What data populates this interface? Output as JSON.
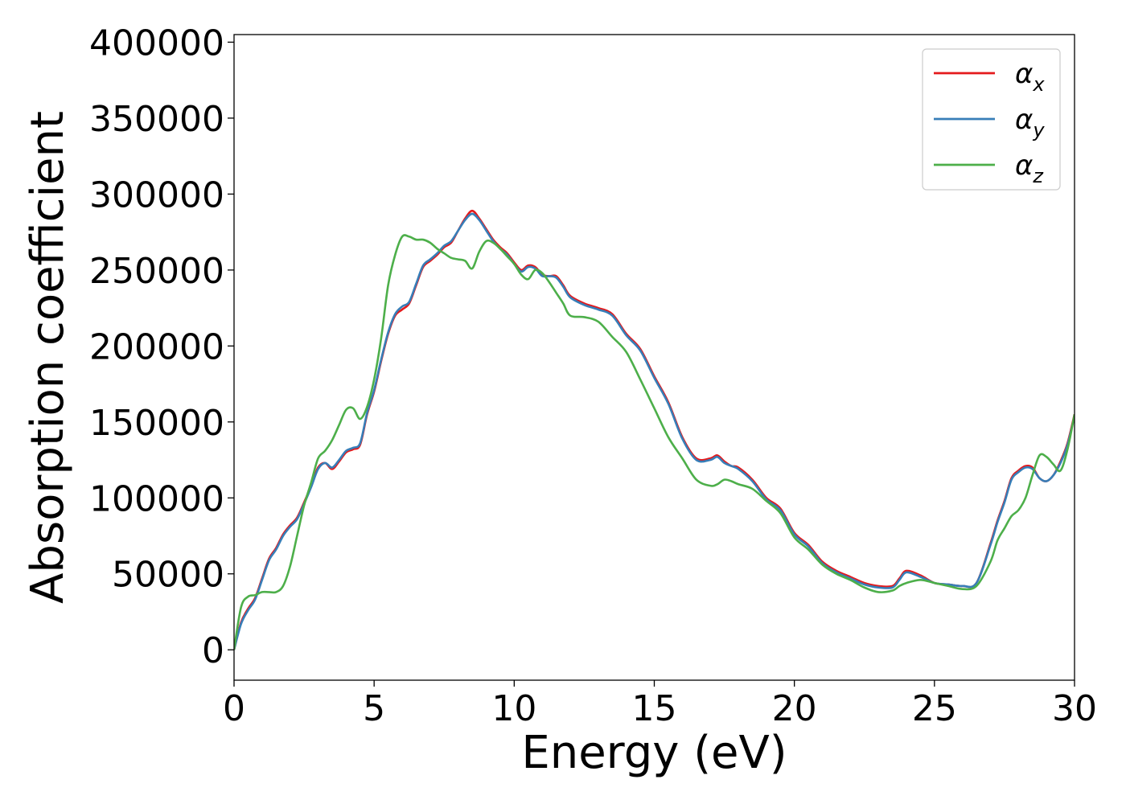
{
  "chart_data": {
    "type": "line",
    "title": "",
    "xlabel": "Energy (eV)",
    "ylabel": "Absorption coefficient",
    "xlim": [
      0,
      30
    ],
    "ylim": [
      -20000,
      405000
    ],
    "xticks": [
      0,
      5,
      10,
      15,
      20,
      25,
      30
    ],
    "yticks": [
      0,
      50000,
      100000,
      150000,
      200000,
      250000,
      300000,
      350000,
      400000
    ],
    "grid": false,
    "legend": "top-right",
    "series": [
      {
        "name": "αx",
        "name_main": "α",
        "name_sub": "x",
        "color": "#e41a1c",
        "x": [
          0,
          0.25,
          0.5,
          0.75,
          1.0,
          1.25,
          1.5,
          1.75,
          2.0,
          2.25,
          2.5,
          2.75,
          3.0,
          3.25,
          3.5,
          3.75,
          4.0,
          4.25,
          4.5,
          4.75,
          5.0,
          5.25,
          5.5,
          5.75,
          6.0,
          6.25,
          6.5,
          6.75,
          7.0,
          7.25,
          7.5,
          7.75,
          8.0,
          8.25,
          8.5,
          8.75,
          9.0,
          9.25,
          9.5,
          9.75,
          10.0,
          10.25,
          10.5,
          10.75,
          11.0,
          11.25,
          11.5,
          11.75,
          12.0,
          12.5,
          13.0,
          13.5,
          14.0,
          14.5,
          15.0,
          15.5,
          16.0,
          16.5,
          17.0,
          17.25,
          17.5,
          17.75,
          18.0,
          18.5,
          19.0,
          19.5,
          20.0,
          20.5,
          21.0,
          21.5,
          22.0,
          22.5,
          23.0,
          23.5,
          23.75,
          24.0,
          24.5,
          25.0,
          25.5,
          26.0,
          26.5,
          27.0,
          27.25,
          27.5,
          27.75,
          28.0,
          28.25,
          28.5,
          28.75,
          29.0,
          29.25,
          29.5,
          29.75,
          30.0
        ],
        "y": [
          0,
          18000,
          27000,
          34000,
          47000,
          60000,
          67000,
          76000,
          82000,
          87000,
          97000,
          108000,
          120000,
          123000,
          119000,
          124000,
          130000,
          132000,
          135000,
          155000,
          170000,
          190000,
          208000,
          220000,
          224000,
          228000,
          240000,
          252000,
          256000,
          260000,
          265000,
          268000,
          276000,
          284000,
          289000,
          284000,
          277000,
          270000,
          265000,
          261000,
          255000,
          250000,
          253000,
          252000,
          247000,
          246000,
          246000,
          240000,
          233000,
          228000,
          225000,
          221000,
          208000,
          198000,
          180000,
          163000,
          140000,
          126000,
          126000,
          128000,
          124000,
          121000,
          120000,
          112000,
          100000,
          93000,
          77000,
          69000,
          58000,
          52000,
          48000,
          44000,
          42000,
          42000,
          47000,
          52000,
          49000,
          44000,
          43000,
          42000,
          44000,
          70000,
          85000,
          98000,
          113000,
          118000,
          121000,
          120000,
          113000,
          111000,
          115000,
          124000,
          136000,
          155000
        ]
      },
      {
        "name": "αy",
        "name_main": "α",
        "name_sub": "y",
        "color": "#377eb8",
        "x": [
          0,
          0.25,
          0.5,
          0.75,
          1.0,
          1.25,
          1.5,
          1.75,
          2.0,
          2.25,
          2.5,
          2.75,
          3.0,
          3.25,
          3.5,
          3.75,
          4.0,
          4.25,
          4.5,
          4.75,
          5.0,
          5.25,
          5.5,
          5.75,
          6.0,
          6.25,
          6.5,
          6.75,
          7.0,
          7.25,
          7.5,
          7.75,
          8.0,
          8.25,
          8.5,
          8.75,
          9.0,
          9.25,
          9.5,
          9.75,
          10.0,
          10.25,
          10.5,
          10.75,
          11.0,
          11.25,
          11.5,
          11.75,
          12.0,
          12.5,
          13.0,
          13.5,
          14.0,
          14.5,
          15.0,
          15.5,
          16.0,
          16.5,
          17.0,
          17.25,
          17.5,
          17.75,
          18.0,
          18.5,
          19.0,
          19.5,
          20.0,
          20.5,
          21.0,
          21.5,
          22.0,
          22.5,
          23.0,
          23.5,
          23.75,
          24.0,
          24.5,
          25.0,
          25.5,
          26.0,
          26.5,
          27.0,
          27.25,
          27.5,
          27.75,
          28.0,
          28.25,
          28.5,
          28.75,
          29.0,
          29.25,
          29.5,
          29.75,
          30.0
        ],
        "y": [
          0,
          17000,
          26000,
          33000,
          46000,
          59000,
          66000,
          75000,
          81000,
          86000,
          96000,
          107000,
          119000,
          123000,
          120000,
          125000,
          131000,
          133000,
          136000,
          156000,
          171000,
          191000,
          209000,
          221000,
          226000,
          229000,
          241000,
          253000,
          257000,
          261000,
          266000,
          269000,
          276000,
          283000,
          287000,
          283000,
          276000,
          269000,
          264000,
          260000,
          254000,
          249000,
          252000,
          251000,
          246000,
          246000,
          245000,
          239000,
          232000,
          227000,
          224000,
          220000,
          207000,
          197000,
          179000,
          162000,
          139000,
          125000,
          125000,
          127000,
          123000,
          121000,
          119000,
          111000,
          99000,
          92000,
          76000,
          68000,
          57000,
          51000,
          47000,
          43000,
          41000,
          41000,
          46000,
          51000,
          48000,
          44000,
          43000,
          42000,
          44000,
          69000,
          84000,
          97000,
          112000,
          117000,
          120000,
          119000,
          113000,
          111000,
          115000,
          123000,
          135000,
          154000
        ]
      },
      {
        "name": "αz",
        "name_main": "α",
        "name_sub": "z",
        "color": "#4daf4a",
        "x": [
          0,
          0.25,
          0.5,
          0.75,
          1.0,
          1.25,
          1.5,
          1.75,
          2.0,
          2.25,
          2.5,
          2.75,
          3.0,
          3.25,
          3.5,
          3.75,
          4.0,
          4.25,
          4.5,
          4.75,
          5.0,
          5.25,
          5.5,
          5.75,
          6.0,
          6.25,
          6.5,
          6.75,
          7.0,
          7.25,
          7.5,
          7.75,
          8.0,
          8.25,
          8.5,
          8.75,
          9.0,
          9.25,
          9.5,
          9.75,
          10.0,
          10.25,
          10.5,
          10.75,
          11.0,
          11.25,
          11.5,
          11.75,
          12.0,
          12.5,
          13.0,
          13.5,
          14.0,
          14.5,
          15.0,
          15.5,
          16.0,
          16.5,
          17.0,
          17.25,
          17.5,
          17.75,
          18.0,
          18.5,
          19.0,
          19.5,
          20.0,
          20.5,
          21.0,
          21.5,
          22.0,
          22.5,
          23.0,
          23.5,
          23.75,
          24.0,
          24.5,
          25.0,
          25.5,
          26.0,
          26.5,
          27.0,
          27.25,
          27.5,
          27.75,
          28.0,
          28.25,
          28.5,
          28.75,
          29.0,
          29.25,
          29.5,
          29.75,
          30.0
        ],
        "y": [
          0,
          28000,
          35000,
          36000,
          38000,
          38000,
          38000,
          42000,
          55000,
          75000,
          95000,
          110000,
          126000,
          131000,
          138000,
          148000,
          158000,
          159000,
          152000,
          160000,
          178000,
          205000,
          240000,
          260000,
          272000,
          272000,
          270000,
          270000,
          268000,
          264000,
          261000,
          258000,
          257000,
          256000,
          251000,
          262000,
          269000,
          268000,
          264000,
          259000,
          254000,
          247000,
          244000,
          250000,
          248000,
          242000,
          235000,
          228000,
          220000,
          219000,
          216000,
          206000,
          196000,
          178000,
          159000,
          140000,
          126000,
          112000,
          108000,
          109000,
          112000,
          111000,
          109000,
          106000,
          98000,
          90000,
          74000,
          66000,
          56000,
          50000,
          46000,
          41000,
          38000,
          39000,
          42000,
          44000,
          46000,
          44000,
          42000,
          40000,
          42000,
          58000,
          72000,
          80000,
          88000,
          92000,
          100000,
          115000,
          128000,
          127000,
          122000,
          118000,
          132000,
          155000
        ]
      }
    ]
  }
}
